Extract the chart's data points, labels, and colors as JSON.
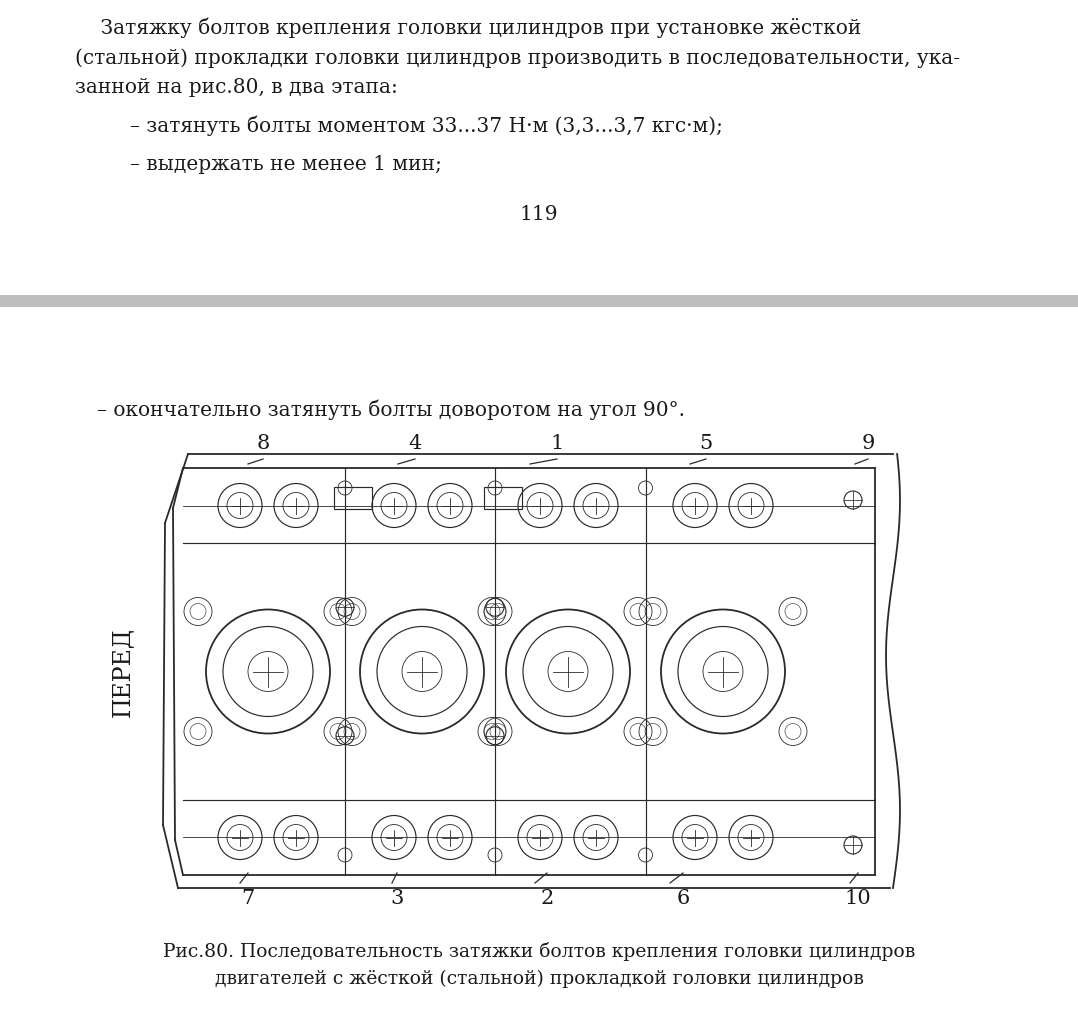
{
  "bg_color": "#ebebeb",
  "page_bg": "#ffffff",
  "separator_color": "#bebebe",
  "text_color": "#1a1a1a",
  "diagram_color": "#2a2a2a",
  "paragraph1_line1": "    Затяжку болтов крепления головки цилиндров при установке жёсткой",
  "paragraph1_line2": "(стальной) прокладки головки цилиндров производить в последовательности, ука-",
  "paragraph1_line3": "занной на рис.80, в два этапа:",
  "bullet1": "– затянуть болты моментом 33...37 Н·м (3,3...3,7 кгс·м);",
  "bullet2": "– выдержать не менее 1 мин;",
  "page_number": "119",
  "bottom_bullet": "– окончательно затянуть болты доворотом на угол 90°.",
  "fig_caption_line1": "Рис.80. Последовательность затяжки болтов крепления головки цилиндров",
  "fig_caption_line2": "двигателей с жёсткой (стальной) прокладкой головки цилиндров",
  "pered_label": "ПЕРЕД",
  "top_labels": [
    [
      "8",
      263,
      455
    ],
    [
      "4",
      415,
      455
    ],
    [
      "1",
      557,
      455
    ],
    [
      "5",
      706,
      455
    ],
    [
      "9",
      868,
      455
    ]
  ],
  "bottom_labels": [
    [
      "7",
      248,
      887
    ],
    [
      "3",
      397,
      887
    ],
    [
      "2",
      547,
      887
    ],
    [
      "6",
      683,
      887
    ],
    [
      "10",
      858,
      887
    ]
  ],
  "font_size_body": 14.5,
  "font_size_caption": 13.5,
  "font_size_label": 15
}
